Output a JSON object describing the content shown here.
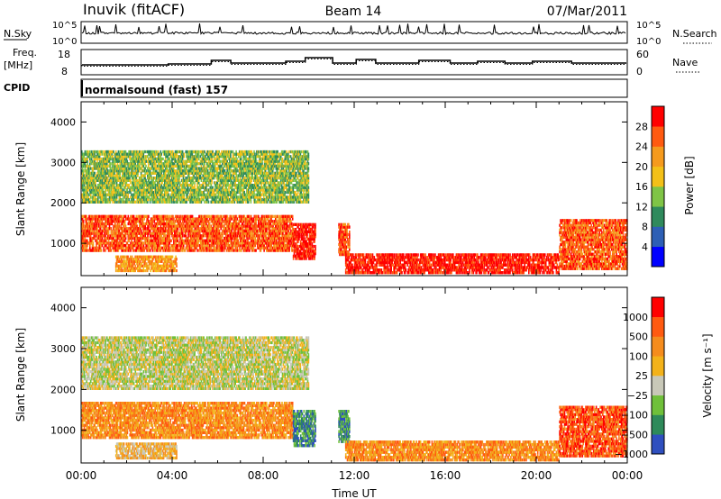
{
  "header": {
    "station": "Inuvik (fitACF)",
    "beam": "Beam 14",
    "date": "07/Mar/2011"
  },
  "top_panels": {
    "nsky_label": "N.Sky",
    "nsky_ticks": [
      "10^5",
      "10^0"
    ],
    "nsearch_label": "N.Search",
    "nsearch_ticks": [
      "10^5",
      "10^0"
    ],
    "freq_label_1": "Freq.",
    "freq_label_2": "[MHz]",
    "freq_ticks": [
      "18",
      "8"
    ],
    "nave_label": "Nave",
    "nave_ticks": [
      "60",
      "0"
    ],
    "cpid_label": "CPID",
    "cpid_text": "normalsound (fast) 157"
  },
  "chart_data": [
    {
      "type": "heatmap",
      "name": "power",
      "ylabel": "Slant Range [km]",
      "y_ticks": [
        1000,
        2000,
        3000,
        4000
      ],
      "ylim": [
        200,
        4500
      ],
      "xlim": [
        0,
        24
      ],
      "colorbar_label": "Power [dB]",
      "colorbar_ticks": [
        "28",
        "24",
        "20",
        "16",
        "12",
        "8",
        "4"
      ],
      "colors": [
        "#0000ff",
        "#2d5fb5",
        "#2f8a5c",
        "#7fc446",
        "#f3c018",
        "#f59a1d",
        "#ff5a10",
        "#ff0000"
      ],
      "echo_regions": [
        {
          "t0": 0.0,
          "t1": 9.3,
          "r0": 800,
          "r1": 1700,
          "level": 6
        },
        {
          "t0": 9.3,
          "t1": 10.3,
          "r0": 600,
          "r1": 1500,
          "level": 7
        },
        {
          "t0": 11.3,
          "t1": 11.8,
          "r0": 700,
          "r1": 1500,
          "level": 6
        },
        {
          "t0": 11.6,
          "t1": 21.0,
          "r0": 250,
          "r1": 750,
          "level": 7
        },
        {
          "t0": 21.0,
          "t1": 24.0,
          "r0": 350,
          "r1": 1600,
          "level": 6
        },
        {
          "t0": 0.0,
          "t1": 10.0,
          "r0": 2000,
          "r1": 3300,
          "level": 3
        },
        {
          "t0": 1.5,
          "t1": 4.2,
          "r0": 300,
          "r1": 700,
          "level": 5
        }
      ]
    },
    {
      "type": "heatmap",
      "name": "velocity",
      "ylabel": "Slant Range [km]",
      "y_ticks": [
        1000,
        2000,
        3000,
        4000
      ],
      "ylim": [
        200,
        4500
      ],
      "xlim": [
        0,
        24
      ],
      "xlabel": "Time UT",
      "x_ticks": [
        "00:00",
        "04:00",
        "08:00",
        "12:00",
        "16:00",
        "20:00",
        "00:00"
      ],
      "colorbar_label": "Velocity [m s⁻¹]",
      "colorbar_ticks": [
        "1000",
        "500",
        "100",
        "25",
        "−25",
        "−100",
        "−500",
        "−1000"
      ],
      "colors": [
        "#2f4fbf",
        "#2e8a5a",
        "#6fc03a",
        "#c8c8b8",
        "#f3b21a",
        "#f58c1d",
        "#ff5a10",
        "#ff0000"
      ],
      "echo_regions": [
        {
          "t0": 0.0,
          "t1": 9.3,
          "r0": 800,
          "r1": 1700,
          "level": 5
        },
        {
          "t0": 9.3,
          "t1": 10.3,
          "r0": 600,
          "r1": 1500,
          "level": 1
        },
        {
          "t0": 11.3,
          "t1": 11.8,
          "r0": 700,
          "r1": 1500,
          "level": 1
        },
        {
          "t0": 11.6,
          "t1": 21.0,
          "r0": 250,
          "r1": 750,
          "level": 5
        },
        {
          "t0": 21.0,
          "t1": 24.0,
          "r0": 350,
          "r1": 1600,
          "level": 6
        },
        {
          "t0": 0.0,
          "t1": 10.0,
          "r0": 2000,
          "r1": 3300,
          "level": 3
        },
        {
          "t0": 1.5,
          "t1": 4.2,
          "r0": 300,
          "r1": 700,
          "level": 4
        }
      ]
    }
  ]
}
